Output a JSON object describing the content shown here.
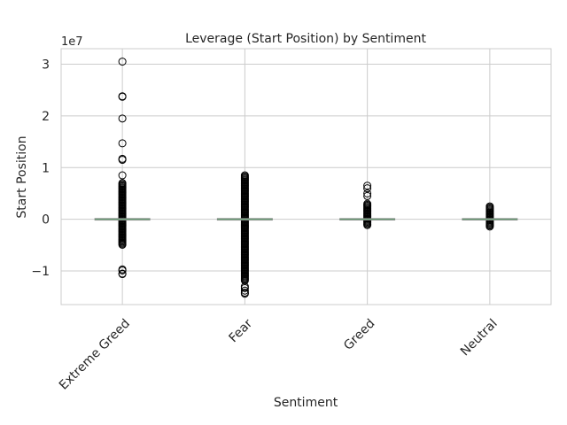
{
  "chart_data": {
    "type": "box",
    "title": "Leverage (Start Position) by Sentiment",
    "xlabel": "Sentiment",
    "ylabel": "Start Position",
    "y_offset_label": "1e7",
    "y_scale_factor": 10000000,
    "ylim": [
      -16500000,
      33000000
    ],
    "yticks": [
      -10000000,
      0,
      10000000,
      20000000,
      30000000
    ],
    "ytick_labels": [
      "−1",
      "0",
      "1",
      "2",
      "3"
    ],
    "grid": true,
    "categories": [
      "Extreme Greed",
      "Fear",
      "Greed",
      "Neutral"
    ],
    "series": [
      {
        "category": "Extreme Greed",
        "median": 0,
        "q1": -30000,
        "q3": 30000,
        "whisker_low": -80000,
        "whisker_high": 80000,
        "outlier_dense_range": [
          -5000000,
          7000000
        ],
        "outliers": [
          30500000,
          23800000,
          23700000,
          19500000,
          14700000,
          11700000,
          11500000,
          8500000,
          -9700000,
          -9900000,
          -10500000,
          -10600000
        ]
      },
      {
        "category": "Fear",
        "median": 0,
        "q1": -30000,
        "q3": 30000,
        "whisker_low": -80000,
        "whisker_high": 80000,
        "outlier_dense_range": [
          -12000000,
          8500000
        ],
        "outliers": [
          -13000000,
          -13300000,
          -13800000,
          -14200000,
          -14400000
        ]
      },
      {
        "category": "Greed",
        "median": 0,
        "q1": -20000,
        "q3": 20000,
        "whisker_low": -60000,
        "whisker_high": 60000,
        "outlier_dense_range": [
          -1200000,
          3000000
        ],
        "outliers": [
          6500000,
          6000000,
          5000000,
          4500000
        ]
      },
      {
        "category": "Neutral",
        "median": 0,
        "q1": -20000,
        "q3": 20000,
        "whisker_low": -60000,
        "whisker_high": 60000,
        "outlier_dense_range": [
          -1500000,
          2500000
        ],
        "outliers": []
      }
    ]
  }
}
